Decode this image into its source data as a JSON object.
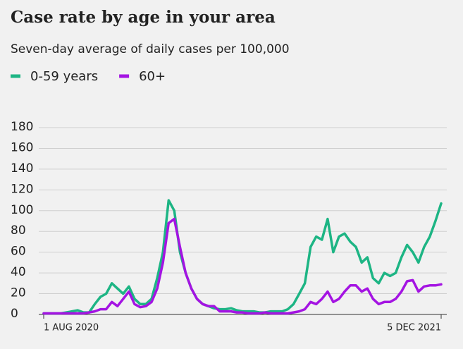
{
  "chart_data": {
    "type": "line",
    "title": "Case rate by age in your area",
    "subtitle": "Seven-day average of daily cases per 100,000",
    "categories": [
      "1 AUG 2020",
      null,
      null,
      null,
      null,
      null,
      null,
      null,
      null,
      null,
      null,
      null,
      null,
      null,
      null,
      null,
      null,
      null,
      null,
      null,
      null,
      null,
      null,
      null,
      null,
      null,
      null,
      null,
      null,
      null,
      null,
      null,
      null,
      null,
      null,
      null,
      null,
      null,
      null,
      null,
      null,
      null,
      null,
      null,
      null,
      null,
      null,
      null,
      null,
      null,
      null,
      null,
      null,
      null,
      null,
      null,
      null,
      null,
      null,
      null,
      null,
      null,
      null,
      null,
      null,
      null,
      null,
      null,
      null,
      null,
      "5 DEC 2021"
    ],
    "series": [
      {
        "name": "0-59 years",
        "color": "#1db584",
        "values": [
          1,
          1,
          1,
          1,
          2,
          3,
          4,
          2,
          2,
          10,
          17,
          20,
          30,
          25,
          20,
          27,
          15,
          10,
          10,
          15,
          35,
          60,
          110,
          100,
          60,
          40,
          25,
          15,
          10,
          8,
          6,
          5,
          5,
          6,
          4,
          3,
          3,
          3,
          2,
          2,
          3,
          3,
          3,
          5,
          10,
          20,
          30,
          65,
          75,
          72,
          92,
          60,
          75,
          78,
          70,
          65,
          50,
          55,
          35,
          30,
          40,
          37,
          40,
          55,
          67,
          60,
          50,
          65,
          75,
          90,
          107
        ]
      },
      {
        "name": "60+",
        "color": "#a414e2",
        "values": [
          1,
          1,
          1,
          1,
          1,
          1,
          1,
          1,
          2,
          3,
          5,
          5,
          12,
          8,
          15,
          22,
          10,
          7,
          8,
          12,
          25,
          50,
          88,
          92,
          65,
          40,
          25,
          15,
          10,
          8,
          8,
          3,
          3,
          3,
          2,
          2,
          1,
          1,
          1,
          2,
          1,
          1,
          1,
          1,
          2,
          3,
          5,
          12,
          10,
          15,
          22,
          12,
          15,
          22,
          28,
          28,
          22,
          25,
          15,
          10,
          12,
          12,
          15,
          22,
          32,
          33,
          22,
          27,
          28,
          28,
          29
        ]
      }
    ],
    "ylim": [
      0,
      180
    ],
    "yticks": [
      0,
      20,
      40,
      60,
      80,
      100,
      120,
      140,
      160,
      180
    ],
    "grid": true
  }
}
